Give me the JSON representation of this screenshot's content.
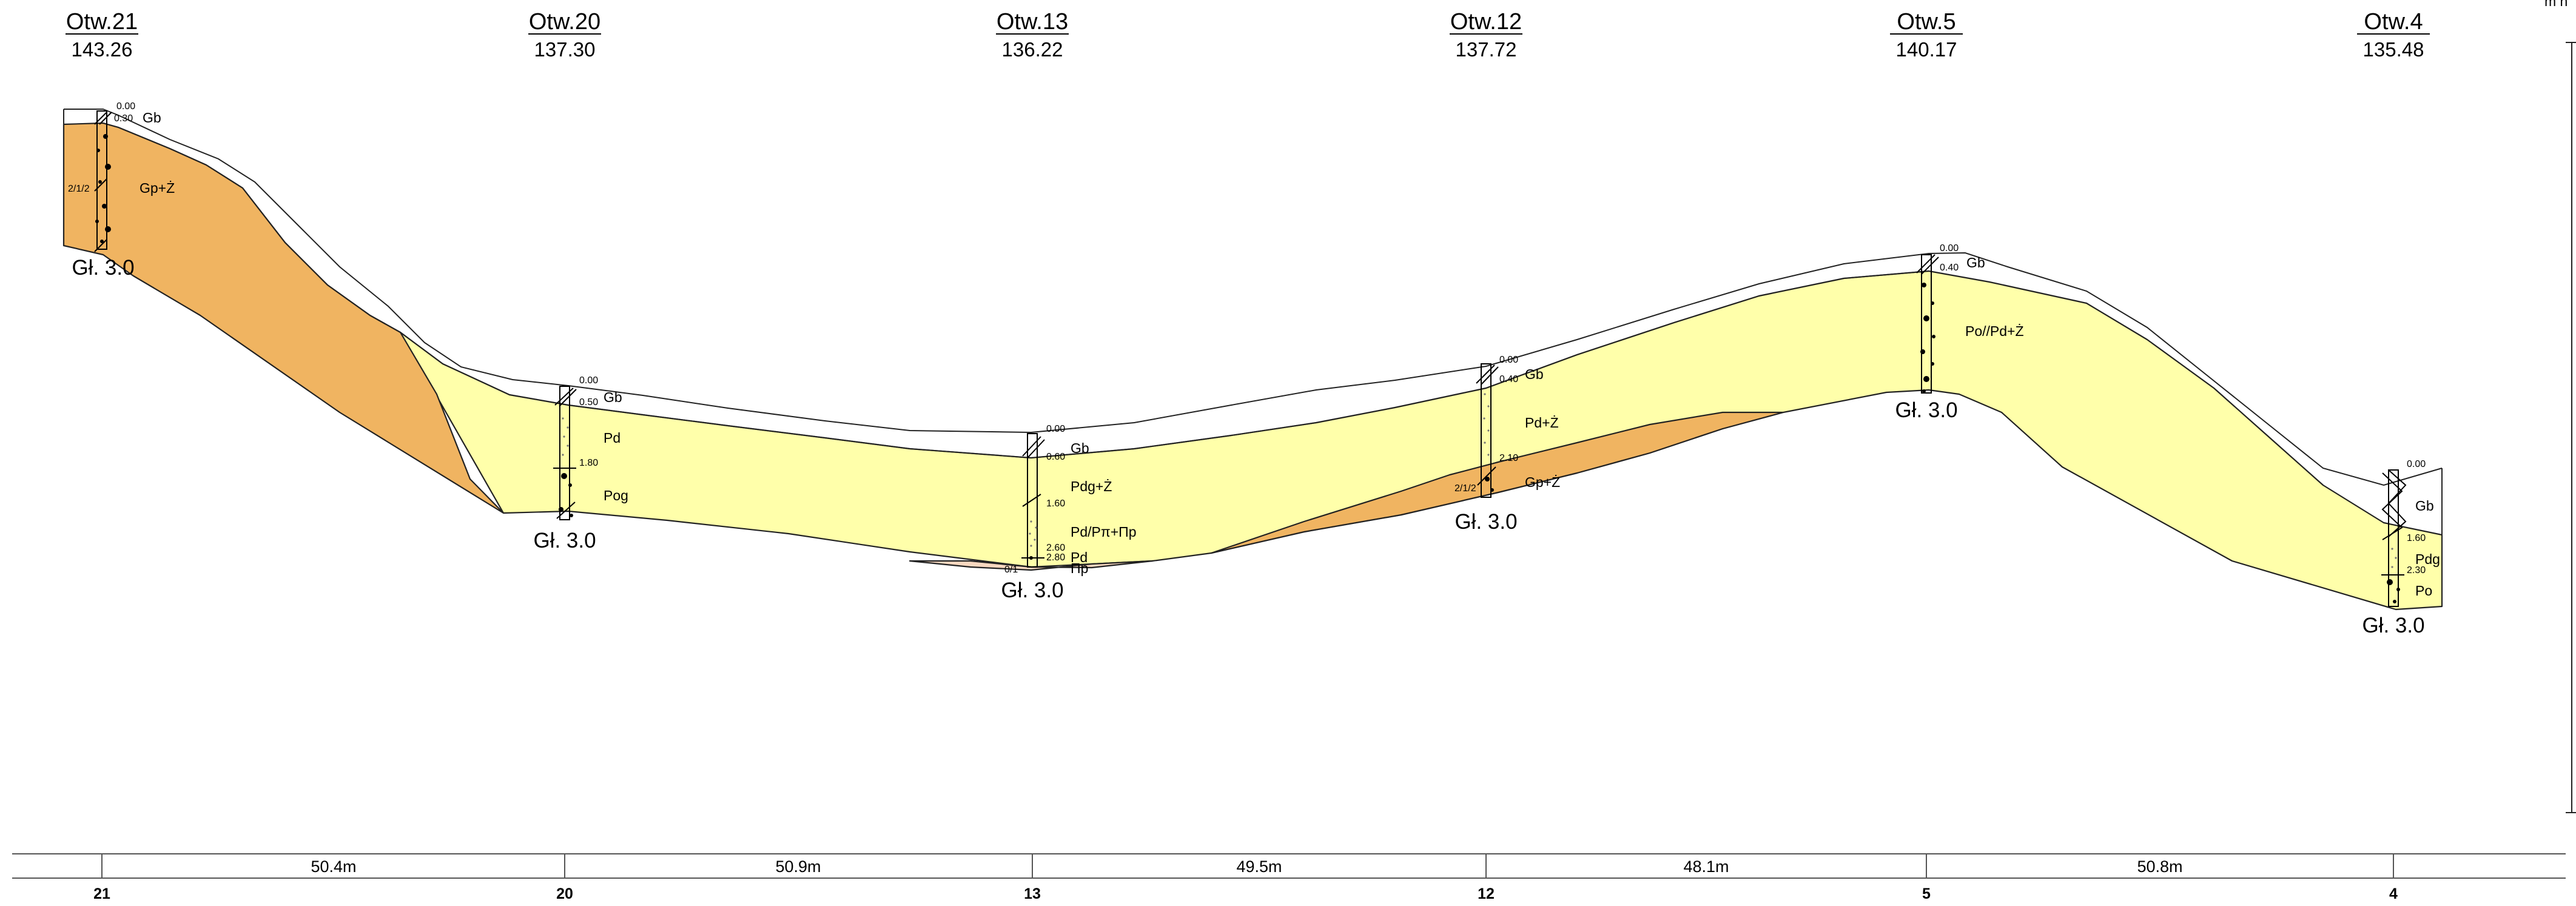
{
  "colors": {
    "sand": "#ffffaa",
    "gravel_clay": "#f0b461",
    "pink_lens": "#f8d8c0",
    "line": "#222222"
  },
  "corner_label": "m n",
  "boreholes": [
    {
      "id": "otw21",
      "name": "Otw.21",
      "elevation": "143.26",
      "depth_label": "Gł. 3.0",
      "station": "21",
      "layers": [
        {
          "depth": "0.00",
          "code": "Gb"
        },
        {
          "depth": "0.30",
          "code": ""
        },
        {
          "depth": "",
          "code": "Gp+Ż",
          "note": "2/1/2"
        }
      ]
    },
    {
      "id": "otw20",
      "name": "Otw.20",
      "elevation": "137.30",
      "depth_label": "Gł. 3.0",
      "station": "20",
      "layers": [
        {
          "depth": "0.00",
          "code": "Gb"
        },
        {
          "depth": "0.50",
          "code": "Pd"
        },
        {
          "depth": "1.80",
          "code": "Pog"
        }
      ]
    },
    {
      "id": "otw13",
      "name": "Otw.13",
      "elevation": "136.22",
      "depth_label": "Gł. 3.0",
      "station": "13",
      "layers": [
        {
          "depth": "0.00",
          "code": "Gb"
        },
        {
          "depth": "0.60",
          "code": "Pdg+Ż"
        },
        {
          "depth": "1.60",
          "code": "Pd/Pπ+Πp"
        },
        {
          "depth": "2.60",
          "code": "Pd"
        },
        {
          "depth": "2.80",
          "code": "Πp"
        }
      ],
      "extra_label": "0/1"
    },
    {
      "id": "otw12",
      "name": "Otw.12",
      "elevation": "137.72",
      "depth_label": "Gł. 3.0",
      "station": "12",
      "layers": [
        {
          "depth": "0.00",
          "code": "Gb"
        },
        {
          "depth": "0.40",
          "code": "Pd+Ż"
        },
        {
          "depth": "2.10",
          "code": "Gp+Ż",
          "note": "2/1/2"
        }
      ]
    },
    {
      "id": "otw5",
      "name": "Otw.5",
      "elevation": "140.17",
      "depth_label": "Gł. 3.0",
      "station": "5",
      "layers": [
        {
          "depth": "0.00",
          "code": "Gb"
        },
        {
          "depth": "0.40",
          "code": "Po//Pd+Ż"
        }
      ]
    },
    {
      "id": "otw4",
      "name": "Otw.4",
      "elevation": "135.48",
      "depth_label": "Gł. 3.0",
      "station": "4",
      "layers": [
        {
          "depth": "0.00",
          "code": "Gb"
        },
        {
          "depth": "1.60",
          "code": "Pdg"
        },
        {
          "depth": "2.30",
          "code": "Po"
        }
      ]
    }
  ],
  "distances": [
    "50.4m",
    "50.9m",
    "49.5m",
    "48.1m",
    "50.8m"
  ]
}
